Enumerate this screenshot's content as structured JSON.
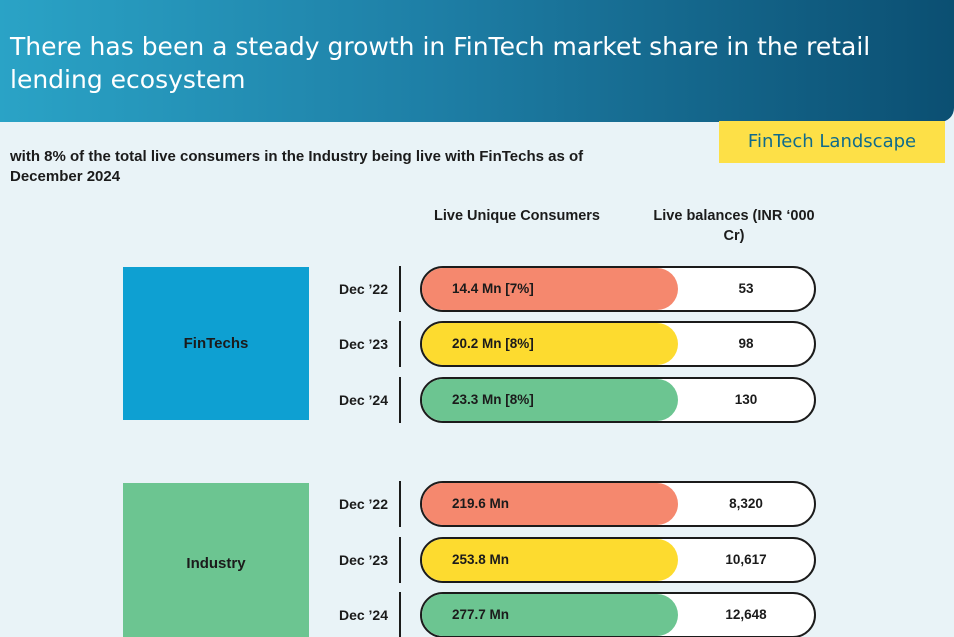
{
  "header": {
    "title": "There has been a steady growth in FinTech market share in the retail lending ecosystem",
    "tag": "FinTech Landscape"
  },
  "subtitle": "with 8% of the total live consumers in the Industry being live with FinTechs as of December 2024",
  "columns": {
    "consumers": "Live Unique Consumers",
    "balances": "Live balances (INR ‘000 Cr)"
  },
  "colors": {
    "banner_start": "#2aa3c6",
    "banner_end": "#0b4f72",
    "tag_bg": "#fde047",
    "fintechs_bg": "#0ea0d2",
    "industry_bg": "#6cc591",
    "dec22": "#f5886e",
    "dec23": "#fddb2f",
    "dec24": "#6cc591"
  },
  "groups": [
    {
      "name": "FinTechs",
      "rows": [
        {
          "period": "Dec ’22",
          "consumers": "14.4 Mn [7%]",
          "balance": "53"
        },
        {
          "period": "Dec ’23",
          "consumers": "20.2 Mn [8%]",
          "balance": "98"
        },
        {
          "period": "Dec ’24",
          "consumers": "23.3 Mn [8%]",
          "balance": "130"
        }
      ]
    },
    {
      "name": "Industry",
      "rows": [
        {
          "period": "Dec ’22",
          "consumers": "219.6 Mn",
          "balance": "8,320"
        },
        {
          "period": "Dec ’23",
          "consumers": "253.8 Mn",
          "balance": "10,617"
        },
        {
          "period": "Dec ’24",
          "consumers": "277.7 Mn",
          "balance": "12,648"
        }
      ]
    }
  ]
}
